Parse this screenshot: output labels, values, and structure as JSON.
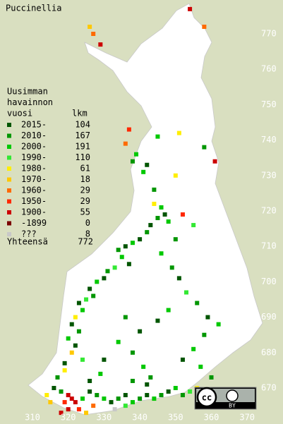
{
  "title": "Puccinellia",
  "legend": {
    "heading": [
      "Uusimman",
      "havainnon",
      "vuosi"
    ],
    "count_heading": "lkm",
    "entries": [
      {
        "label": "2015-",
        "count": 104,
        "color": "#005500"
      },
      {
        "label": "2010-",
        "count": 167,
        "color": "#009600"
      },
      {
        "label": "2000-",
        "count": 191,
        "color": "#00c800"
      },
      {
        "label": "1990-",
        "count": 110,
        "color": "#33e833"
      },
      {
        "label": "1980-",
        "count": 61,
        "color": "#ffee00"
      },
      {
        "label": "1970-",
        "count": 18,
        "color": "#ffc800"
      },
      {
        "label": "1960-",
        "count": 29,
        "color": "#ff6a00"
      },
      {
        "label": "1950-",
        "count": 29,
        "color": "#ff2800"
      },
      {
        "label": "1900-",
        "count": 55,
        "color": "#cc0000"
      },
      {
        "label": "-1899",
        "count": 0,
        "color": "#7a0000"
      },
      {
        "label": "???",
        "count": 8,
        "color": "#c8c8c8"
      }
    ],
    "total_label": "Yhteensä",
    "total": 772
  },
  "xticks": [
    310,
    320,
    330,
    340,
    350,
    360,
    370
  ],
  "yticks": [
    770,
    760,
    750,
    740,
    730,
    720,
    710,
    700,
    690,
    680,
    670
  ],
  "license": "BY",
  "squares": [
    [
      354,
      777,
      8
    ],
    [
      358,
      772,
      6
    ],
    [
      326,
      772,
      5
    ],
    [
      327,
      770,
      6
    ],
    [
      329,
      767,
      8
    ],
    [
      337,
      743,
      7
    ],
    [
      336,
      739,
      6
    ],
    [
      339,
      736,
      2
    ],
    [
      338,
      734,
      1
    ],
    [
      345,
      741,
      2
    ],
    [
      351,
      742,
      4
    ],
    [
      358,
      738,
      1
    ],
    [
      361,
      734,
      8
    ],
    [
      342,
      733,
      0
    ],
    [
      341,
      731,
      2
    ],
    [
      344,
      726,
      1
    ],
    [
      350,
      730,
      4
    ],
    [
      344,
      722,
      4
    ],
    [
      346,
      721,
      2
    ],
    [
      347,
      719,
      0
    ],
    [
      345,
      718,
      1
    ],
    [
      343,
      716,
      0
    ],
    [
      348,
      717,
      2
    ],
    [
      342,
      714,
      1
    ],
    [
      340,
      712,
      0
    ],
    [
      338,
      711,
      2
    ],
    [
      336,
      710,
      0
    ],
    [
      334,
      709,
      1
    ],
    [
      335,
      707,
      2
    ],
    [
      337,
      705,
      0
    ],
    [
      333,
      704,
      3
    ],
    [
      331,
      703,
      1
    ],
    [
      330,
      701,
      0
    ],
    [
      328,
      700,
      2
    ],
    [
      326,
      698,
      0
    ],
    [
      327,
      696,
      1
    ],
    [
      325,
      695,
      3
    ],
    [
      323,
      694,
      0
    ],
    [
      324,
      692,
      2
    ],
    [
      322,
      690,
      4
    ],
    [
      321,
      688,
      0
    ],
    [
      323,
      686,
      1
    ],
    [
      320,
      684,
      2
    ],
    [
      322,
      682,
      0
    ],
    [
      321,
      680,
      5
    ],
    [
      324,
      678,
      3
    ],
    [
      319,
      677,
      0
    ],
    [
      350,
      712,
      1
    ],
    [
      352,
      719,
      7
    ],
    [
      355,
      716,
      3
    ],
    [
      346,
      708,
      2
    ],
    [
      349,
      704,
      1
    ],
    [
      351,
      701,
      0
    ],
    [
      353,
      697,
      3
    ],
    [
      348,
      692,
      2
    ],
    [
      345,
      689,
      0
    ],
    [
      356,
      694,
      1
    ],
    [
      359,
      690,
      0
    ],
    [
      362,
      688,
      2
    ],
    [
      358,
      685,
      1
    ],
    [
      355,
      681,
      2
    ],
    [
      352,
      678,
      0
    ],
    [
      357,
      676,
      2
    ],
    [
      360,
      673,
      1
    ],
    [
      336,
      690,
      1
    ],
    [
      340,
      686,
      0
    ],
    [
      334,
      683,
      2
    ],
    [
      338,
      680,
      1
    ],
    [
      330,
      678,
      0
    ],
    [
      341,
      676,
      2
    ],
    [
      343,
      673,
      1
    ],
    [
      316,
      670,
      0
    ],
    [
      318,
      669,
      1
    ],
    [
      320,
      668,
      8
    ],
    [
      321,
      667,
      8
    ],
    [
      322,
      666,
      8
    ],
    [
      319,
      666,
      7
    ],
    [
      320,
      664,
      8
    ],
    [
      323,
      664,
      7
    ],
    [
      318,
      663,
      8
    ],
    [
      325,
      663,
      5
    ],
    [
      324,
      667,
      2
    ],
    [
      326,
      669,
      0
    ],
    [
      328,
      668,
      1
    ],
    [
      330,
      667,
      2
    ],
    [
      332,
      666,
      0
    ],
    [
      334,
      667,
      1
    ],
    [
      336,
      668,
      0
    ],
    [
      338,
      666,
      2
    ],
    [
      340,
      667,
      1
    ],
    [
      342,
      668,
      0
    ],
    [
      344,
      667,
      2
    ],
    [
      346,
      668,
      1
    ],
    [
      348,
      669,
      0
    ],
    [
      350,
      670,
      2
    ],
    [
      352,
      668,
      1
    ],
    [
      354,
      669,
      3
    ],
    [
      356,
      670,
      4
    ],
    [
      333,
      664,
      10
    ],
    [
      336,
      665,
      3
    ],
    [
      314,
      668,
      4
    ],
    [
      315,
      666,
      5
    ],
    [
      327,
      665,
      6
    ],
    [
      342,
      671,
      0
    ],
    [
      338,
      672,
      1
    ],
    [
      329,
      674,
      2
    ],
    [
      326,
      672,
      0
    ],
    [
      317,
      673,
      1
    ],
    [
      319,
      675,
      4
    ]
  ]
}
